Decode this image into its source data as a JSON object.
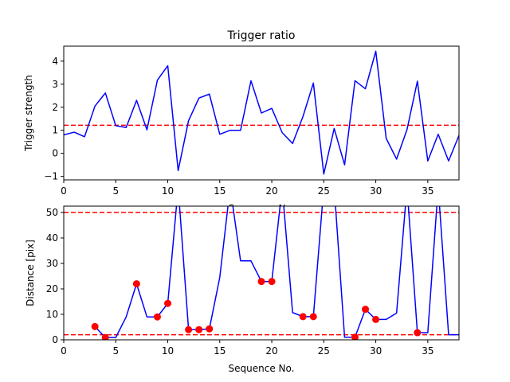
{
  "chart_data": [
    {
      "type": "line",
      "title": "Trigger ratio",
      "xlabel": "Sequence No.",
      "ylabel": "Trigger strength",
      "xlim": [
        0,
        38
      ],
      "ylim": [
        -1.15,
        4.65
      ],
      "xticks": [
        0,
        5,
        10,
        15,
        20,
        25,
        30,
        35
      ],
      "yticks": [
        -1,
        0,
        1,
        2,
        3,
        4
      ],
      "grid": false,
      "series": [
        {
          "color": "#0000ff",
          "x": [
            0,
            1,
            2,
            3,
            4,
            5,
            6,
            7,
            8,
            9,
            10,
            11,
            12,
            13,
            14,
            15,
            16,
            17,
            18,
            19,
            20,
            21,
            22,
            23,
            24,
            25,
            26,
            27,
            28,
            29,
            30,
            31,
            32,
            33,
            34,
            35,
            36,
            37,
            38
          ],
          "values": [
            0.8,
            0.92,
            0.72,
            2.05,
            2.62,
            1.2,
            1.12,
            2.3,
            1.02,
            3.17,
            3.8,
            -0.75,
            1.42,
            2.4,
            2.57,
            0.83,
            1.0,
            1.0,
            3.15,
            1.75,
            1.95,
            0.9,
            0.43,
            1.6,
            3.05,
            -0.9,
            1.08,
            -0.5,
            3.15,
            2.8,
            4.43,
            0.65,
            -0.25,
            1.03,
            3.13,
            -0.33,
            0.83,
            -0.33,
            0.78
          ]
        }
      ],
      "hlines": [
        {
          "y": 1.22,
          "color": "#ff0000",
          "style": "dashed"
        }
      ]
    },
    {
      "type": "line",
      "xlabel": "Sequence No.",
      "ylabel": "Distance [pix]",
      "xlim": [
        0,
        38
      ],
      "ylim": [
        0,
        52.5
      ],
      "xticks": [
        0,
        5,
        10,
        15,
        20,
        25,
        30,
        35
      ],
      "yticks": [
        0,
        10,
        20,
        30,
        40,
        50
      ],
      "grid": false,
      "series": [
        {
          "color": "#0000ff",
          "x": [
            3,
            4,
            5,
            6,
            7,
            8,
            9,
            10,
            11,
            12,
            13,
            14,
            15,
            16,
            17,
            18,
            19,
            20,
            21,
            22,
            23,
            24,
            25,
            26,
            27,
            28,
            29,
            30,
            31,
            32,
            33,
            34,
            35,
            36,
            37,
            38
          ],
          "values": [
            5.2,
            0.9,
            0.9,
            9.0,
            22.0,
            9.0,
            9.0,
            14.3,
            60,
            4.0,
            4.0,
            4.3,
            24.5,
            60,
            31.0,
            31.0,
            22.9,
            22.9,
            60,
            10.7,
            9.1,
            9.1,
            60,
            60,
            1.0,
            1.0,
            12.0,
            8.0,
            8.0,
            10.5,
            60,
            2.8,
            2.8,
            60,
            2.0,
            2.0
          ],
          "note_offscale": "values of 60 exceed the y-axis top (52.5) and are clipped"
        },
        {
          "color": "#ff0000",
          "marker": "circle",
          "x": [
            3,
            4,
            7,
            9,
            10,
            12,
            13,
            14,
            19,
            20,
            23,
            24,
            28,
            29,
            30,
            34
          ],
          "values": [
            5.2,
            0.9,
            22.0,
            9.0,
            14.3,
            4.0,
            4.0,
            4.3,
            22.9,
            22.9,
            9.1,
            9.1,
            1.0,
            12.0,
            8.0,
            2.8
          ]
        }
      ],
      "hlines": [
        {
          "y": 50,
          "color": "#ff0000",
          "style": "dashed"
        },
        {
          "y": 2,
          "color": "#ff0000",
          "style": "dashed"
        }
      ]
    }
  ]
}
